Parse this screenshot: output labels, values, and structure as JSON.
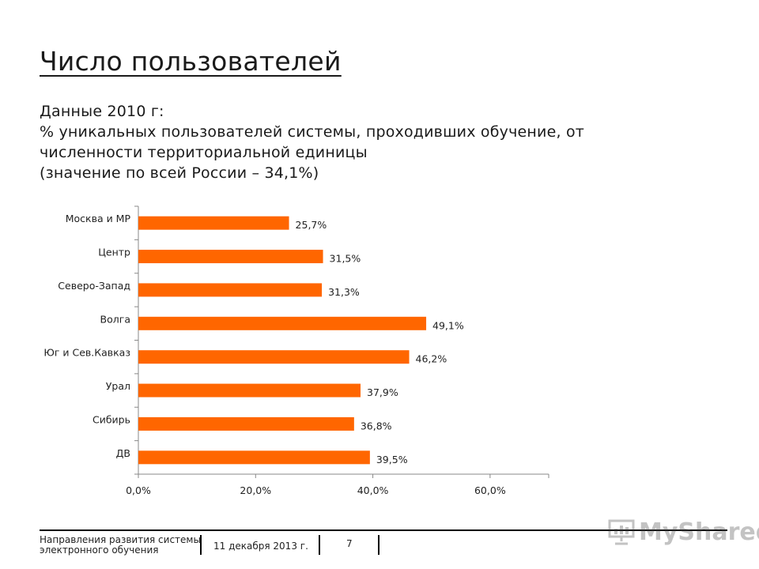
{
  "title": "Число пользователей",
  "subtitle_lines": [
    "Данные 2010 г:",
    "% уникальных пользователей системы, проходивших обучение, от",
    "численности территориальной единицы",
    "(значение по всей России – 34,1%)"
  ],
  "chart_data": {
    "type": "bar",
    "orientation": "horizontal",
    "categories": [
      "Москва и МР",
      "Центр",
      "Северо-Запад",
      "Волга",
      "Юг и Сев.Кавказ",
      "Урал",
      "Сибирь",
      "ДВ"
    ],
    "values": [
      25.7,
      31.5,
      31.3,
      49.1,
      46.2,
      37.9,
      36.8,
      39.5
    ],
    "value_labels": [
      "25,7%",
      "31,5%",
      "31,3%",
      "49,1%",
      "46,2%",
      "37,9%",
      "36,8%",
      "39,5%"
    ],
    "xlim": [
      0,
      70
    ],
    "xticks": [
      0,
      20,
      40,
      60
    ],
    "xtick_labels": [
      "0,0%",
      "20,0%",
      "40,0%",
      "60,0%"
    ],
    "bar_color": "#ff6600",
    "grid": false,
    "legend": "none"
  },
  "footer": {
    "left_line1": "Направления развития системы",
    "left_line2": "электронного обучения",
    "date": "11 декабря 2013 г.",
    "page": "7",
    "logo_text": "MyShared"
  }
}
